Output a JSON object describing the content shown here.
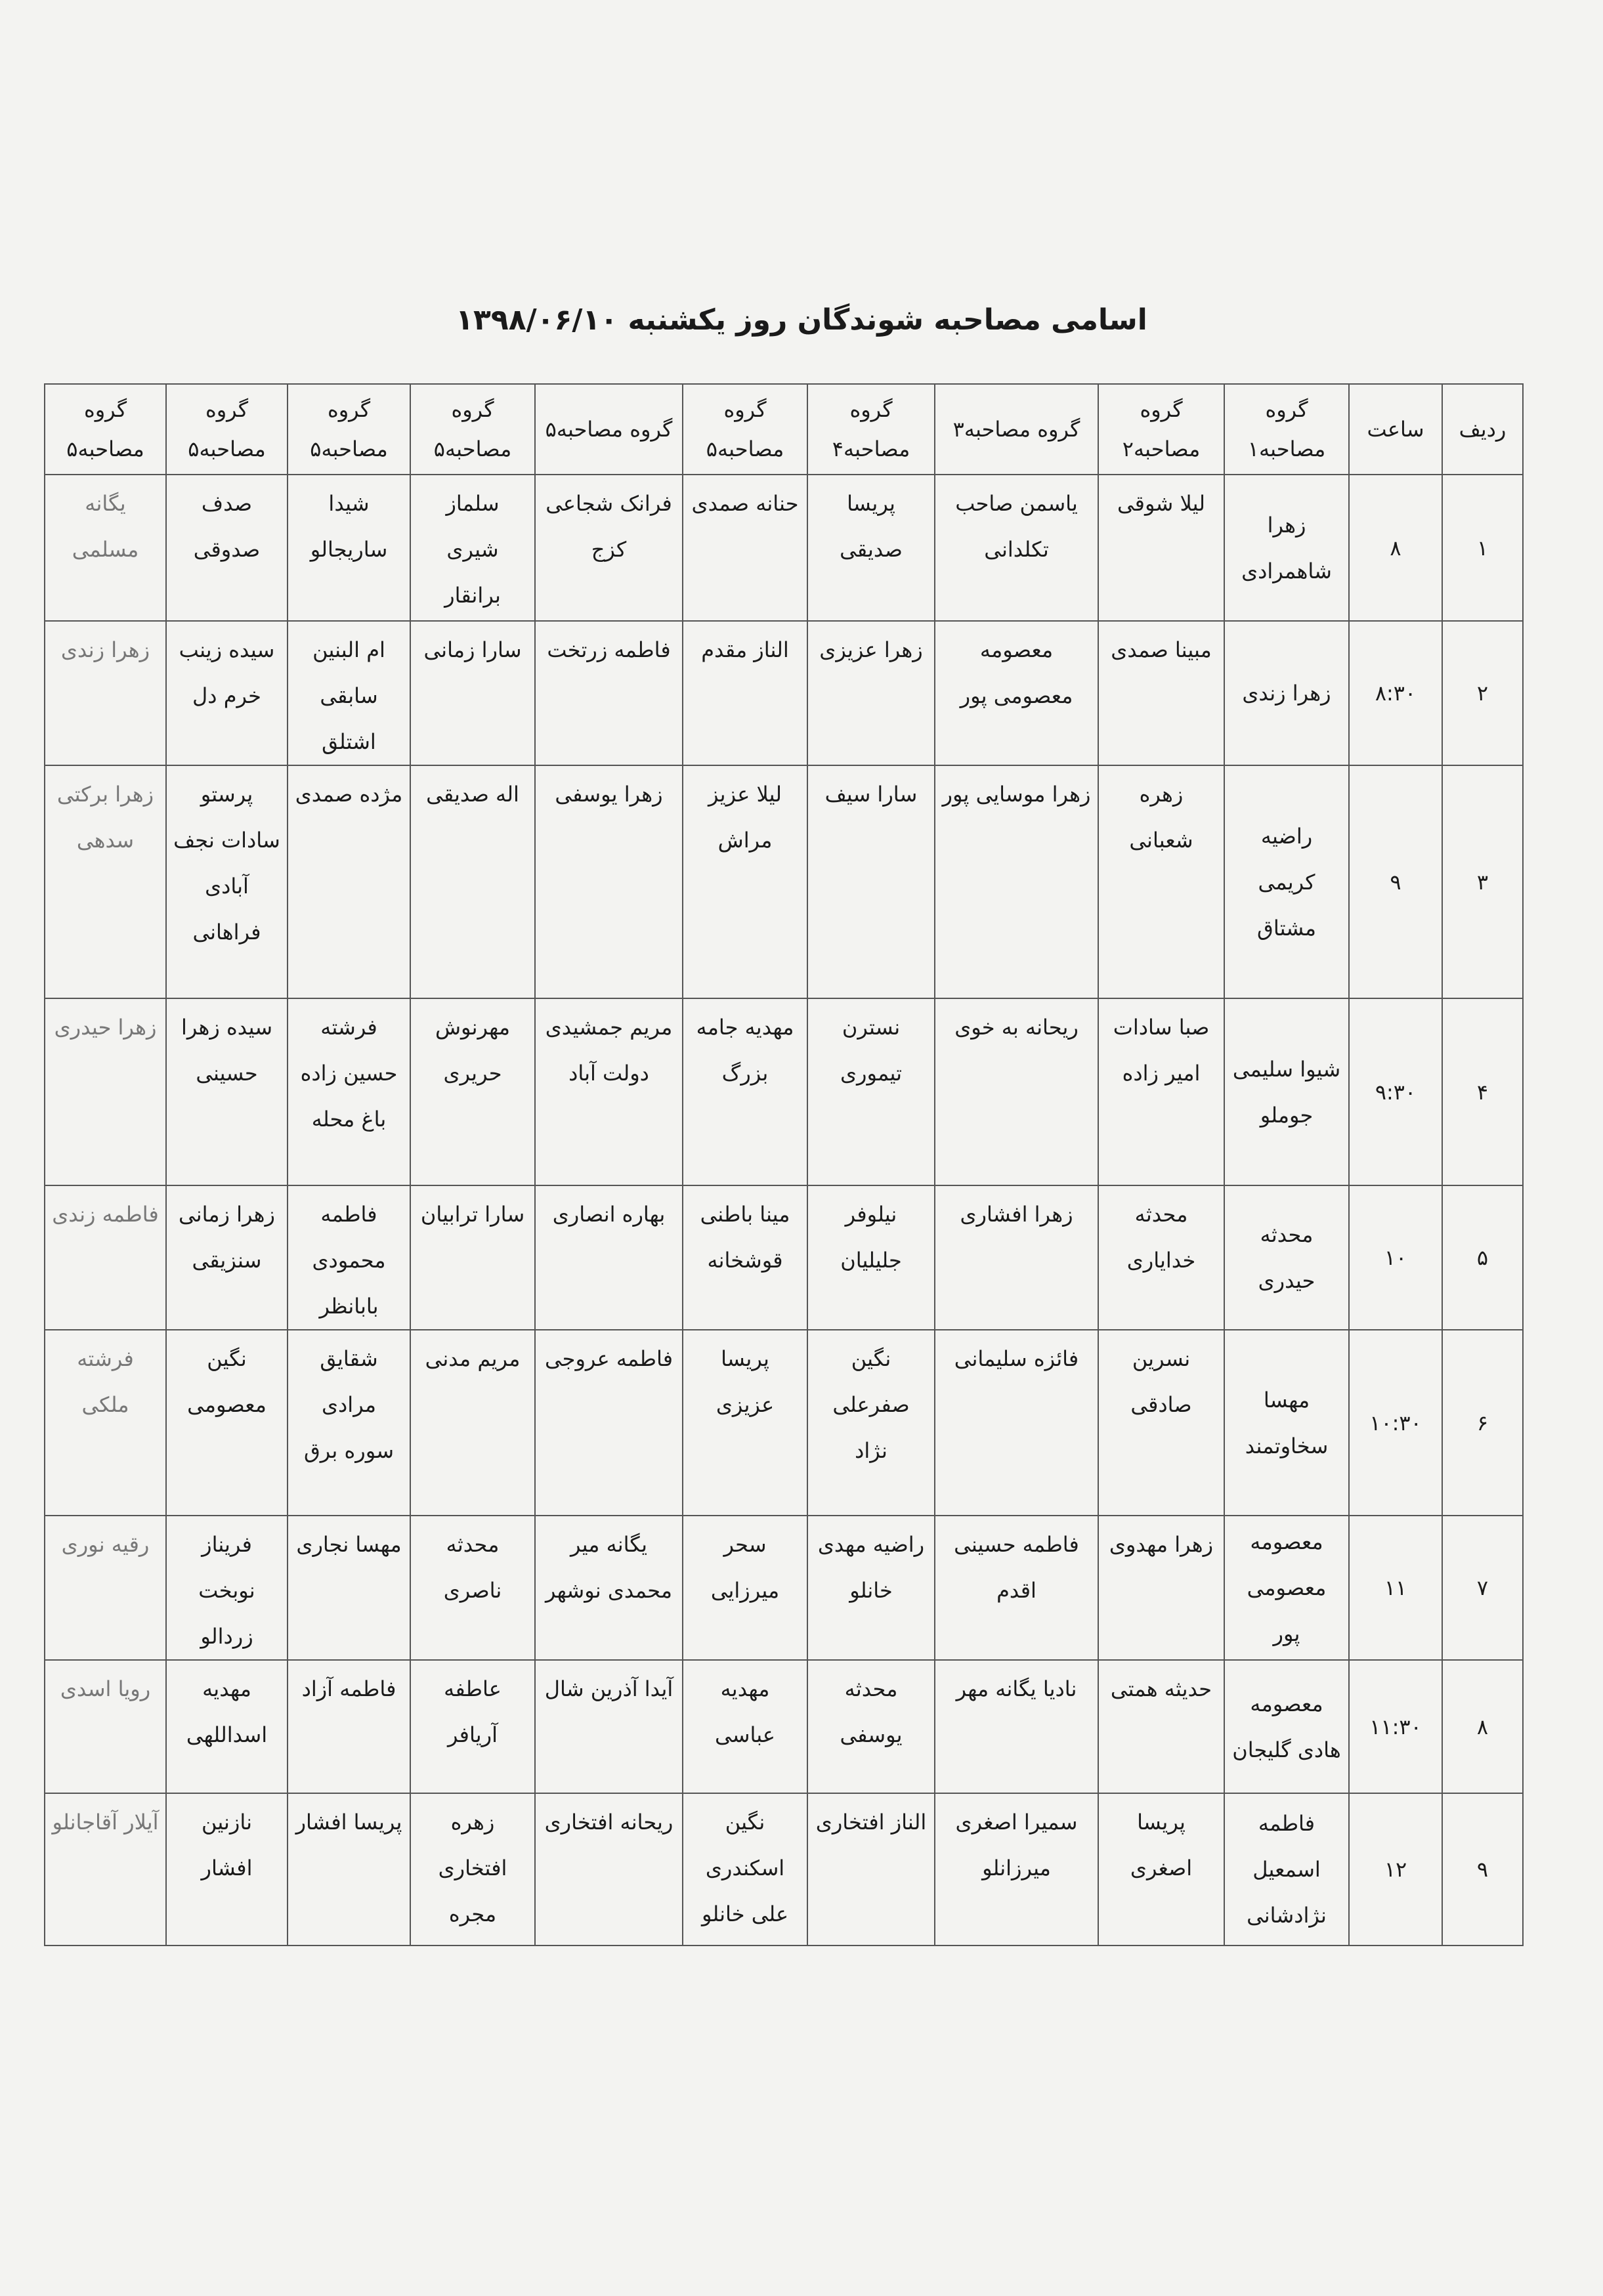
{
  "header": {
    "title": "اسامی مصاحبه شوندگان روز یکشنبه ۱۳۹۸/۰۶/۱۰"
  },
  "table": {
    "columns": [
      "ردیف",
      "ساعت",
      "گروه مصاحبه۱",
      "گروه مصاحبه۲",
      "گروه مصاحبه۳",
      "گروه مصاحبه۴",
      "گروه مصاحبه۵",
      "گروه مصاحبه۵",
      "گروه مصاحبه۵",
      "گروه مصاحبه۵",
      "گروه مصاحبه۵",
      "گروه مصاحبه۵"
    ],
    "rows": [
      [
        "۱",
        "۸",
        "زهرا شاهمرادی",
        "لیلا شوقی",
        "یاسمن صاحب تکلدانی",
        "پریسا صدیقی",
        "حنانه صمدی",
        "فرانک شجاعی کزج",
        "سلماز شیری برانقار",
        "شیدا ساریجالو",
        "صدف صدوقی",
        "یگانه مسلمی"
      ],
      [
        "۲",
        "۸:۳۰",
        "زهرا زندی",
        "مبینا صمدی",
        "معصومه معصومی پور",
        "زهرا عزیزی",
        "الناز مقدم",
        "فاطمه زرتخت",
        "سارا زمانی",
        "ام البنین سابقی اشتلق",
        "سیده زینب خرم دل",
        "زهرا زندی"
      ],
      [
        "۳",
        "۹",
        "راضیه کریمی مشتاق",
        "زهره شعبانی",
        "زهرا موسایی پور",
        "سارا سیف",
        "لیلا عزیز مراش",
        "زهرا یوسفی",
        "اله صدیقی",
        "مژده صمدی",
        "پرستو سادات نجف آبادی فراهانی",
        "زهرا برکتی سدهی"
      ],
      [
        "۴",
        "۹:۳۰",
        "شیوا سلیمی جوملو",
        "صبا سادات امیر زاده",
        "ریحانه به خوی",
        "نسترن تیموری",
        "مهدیه جامه بزرگ",
        "مریم جمشیدی دولت آباد",
        "مهرنوش حریری",
        "فرشته حسین زاده باغ محله",
        "سیده زهرا حسینی",
        "زهرا حیدری"
      ],
      [
        "۵",
        "۱۰",
        "محدثه حیدری",
        "محدثه خدایاری",
        "زهرا افشاری",
        "نیلوفر جلیلیان",
        "مینا باطنی قوشخانه",
        "بهاره انصاری",
        "سارا ترابیان",
        "فاطمه محمودی بابانظر",
        "زهرا زمانی سنزیقی",
        "فاطمه زندی"
      ],
      [
        "۶",
        "۱۰:۳۰",
        "مهسا سخاوتمند",
        "نسرین صادقی",
        "فائزه سلیمانی",
        "نگین صفرعلی نژاد",
        "پریسا عزیزی",
        "فاطمه عروجی",
        "مریم مدنی",
        "شقایق مرادی سوره برق",
        "نگین معصومی",
        "فرشته ملکی"
      ],
      [
        "۷",
        "۱۱",
        "معصومه معصومی پور",
        "زهرا مهدوی",
        "فاطمه حسینی اقدم",
        "راضیه مهدی خانلو",
        "سحر میرزایی",
        "یگانه میر محمدی نوشهر",
        "محدثه ناصری",
        "مهسا نجاری",
        "فریناز نوبخت زردالو",
        "رقیه نوری"
      ],
      [
        "۸",
        "۱۱:۳۰",
        "معصومه هادی گلیجان",
        "حدیثه همتی",
        "نادیا یگانه مهر",
        "محدثه یوسفی",
        "مهدیه عباسی",
        "آیدا آذرین شال",
        "عاطفه آریافر",
        "فاطمه آزاد",
        "مهدیه اسداللهی",
        "رویا اسدی"
      ],
      [
        "۹",
        "۱۲",
        "فاطمه اسمعیل نژادشانی",
        "پریسا اصغری",
        "سمیرا اصغری میرزانلو",
        "الناز افتخاری",
        "نگین اسکندری علی خانلو",
        "ریحانه افتخاری",
        "زهره افتخاری مجره",
        "پریسا افشار",
        "نازنین افشار",
        "آیلار آقاجانلو"
      ]
    ]
  }
}
